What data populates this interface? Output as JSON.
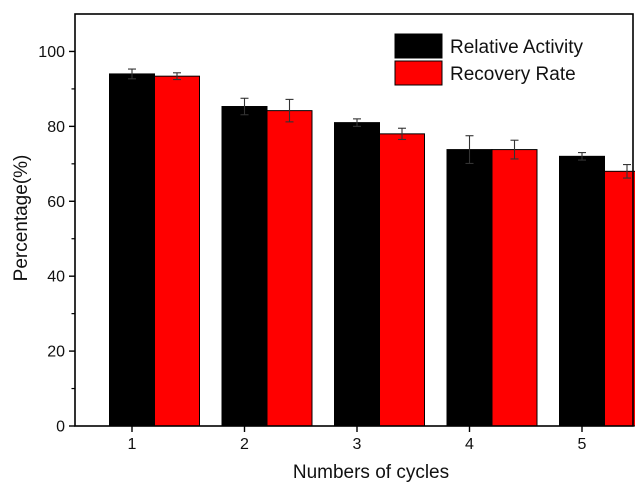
{
  "chart_data": {
    "type": "bar",
    "categories": [
      "1",
      "2",
      "3",
      "4",
      "5"
    ],
    "series": [
      {
        "name": "Relative Activity",
        "color": "#000000",
        "values": [
          94.0,
          85.3,
          81.0,
          73.8,
          72.0
        ],
        "errors": [
          1.3,
          2.2,
          1.0,
          3.7,
          1.0
        ]
      },
      {
        "name": "Recovery Rate",
        "color": "#ff0000",
        "values": [
          93.4,
          84.2,
          78.0,
          73.8,
          68.0
        ],
        "errors": [
          0.9,
          3.0,
          1.5,
          2.5,
          1.8
        ]
      }
    ],
    "xlabel": "Numbers of cycles",
    "ylabel": "Percentage(%)",
    "ylim": [
      0,
      110
    ],
    "yticks": [
      0,
      20,
      40,
      60,
      80,
      100
    ],
    "grid": false,
    "legend_position": "top-right"
  }
}
